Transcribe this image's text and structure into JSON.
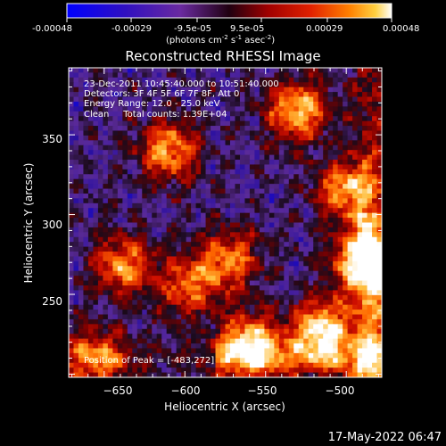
{
  "colorbar": {
    "tick_labels": [
      "-0.00048",
      "-0.00029",
      "-9.5e-05",
      "9.5e-05",
      "0.00029",
      "0.00048"
    ],
    "unit_main": "(photons cm",
    "unit_exp1": "-2",
    "unit_mid": " s",
    "unit_exp2": "-1",
    "unit_tail": " asec",
    "unit_exp3": "-2",
    "unit_close": ")"
  },
  "chart_data": {
    "type": "heatmap",
    "title": "Reconstructed RHESSI Image",
    "xlabel": "Heliocentric X (arcsec)",
    "ylabel": "Heliocentric Y (arcsec)",
    "xlim": [
      -672,
      -478
    ],
    "ylim": [
      198,
      392
    ],
    "x_ticks": [
      -650,
      -600,
      -550,
      -500
    ],
    "y_ticks": [
      250,
      300,
      350
    ],
    "x_tick_labels": [
      "−650",
      "−600",
      "−550",
      "−500"
    ],
    "y_tick_labels": [
      "250",
      "300",
      "350"
    ],
    "color_range": [
      -0.00048,
      0.00048
    ],
    "colormap": [
      "#0000ff",
      "#2a10a0",
      "#5a2a9a",
      "#1a0a1a",
      "#800000",
      "#d01000",
      "#ff6a00",
      "#ffc040",
      "#ffffff"
    ],
    "bright_sources": [
      {
        "x": -515,
        "y": 228,
        "level": 0.95
      },
      {
        "x": -560,
        "y": 220,
        "level": 0.85
      },
      {
        "x": -490,
        "y": 270,
        "level": 0.9
      },
      {
        "x": -530,
        "y": 365,
        "level": 0.85
      },
      {
        "x": -610,
        "y": 340,
        "level": 0.75
      },
      {
        "x": -638,
        "y": 268,
        "level": 0.7
      },
      {
        "x": -598,
        "y": 255,
        "level": 0.6
      },
      {
        "x": -572,
        "y": 272,
        "level": 0.65
      },
      {
        "x": -500,
        "y": 315,
        "level": 0.75
      },
      {
        "x": -655,
        "y": 210,
        "level": 0.6
      }
    ],
    "annotations": [
      "23-Dec-2011 10:45:40.000 to 10:51:40.000",
      "Detectors: 3F 4F 5F 6F 7F 8F, Att 0",
      "Energy Range: 12.0 - 25.0 keV",
      "Clean     Total counts: 1.39E+04"
    ],
    "peak_label": "Position of Peak = [-483,272]",
    "peak": {
      "x": -483,
      "y": 272
    }
  },
  "timestamp": "17-May-2022 06:47"
}
